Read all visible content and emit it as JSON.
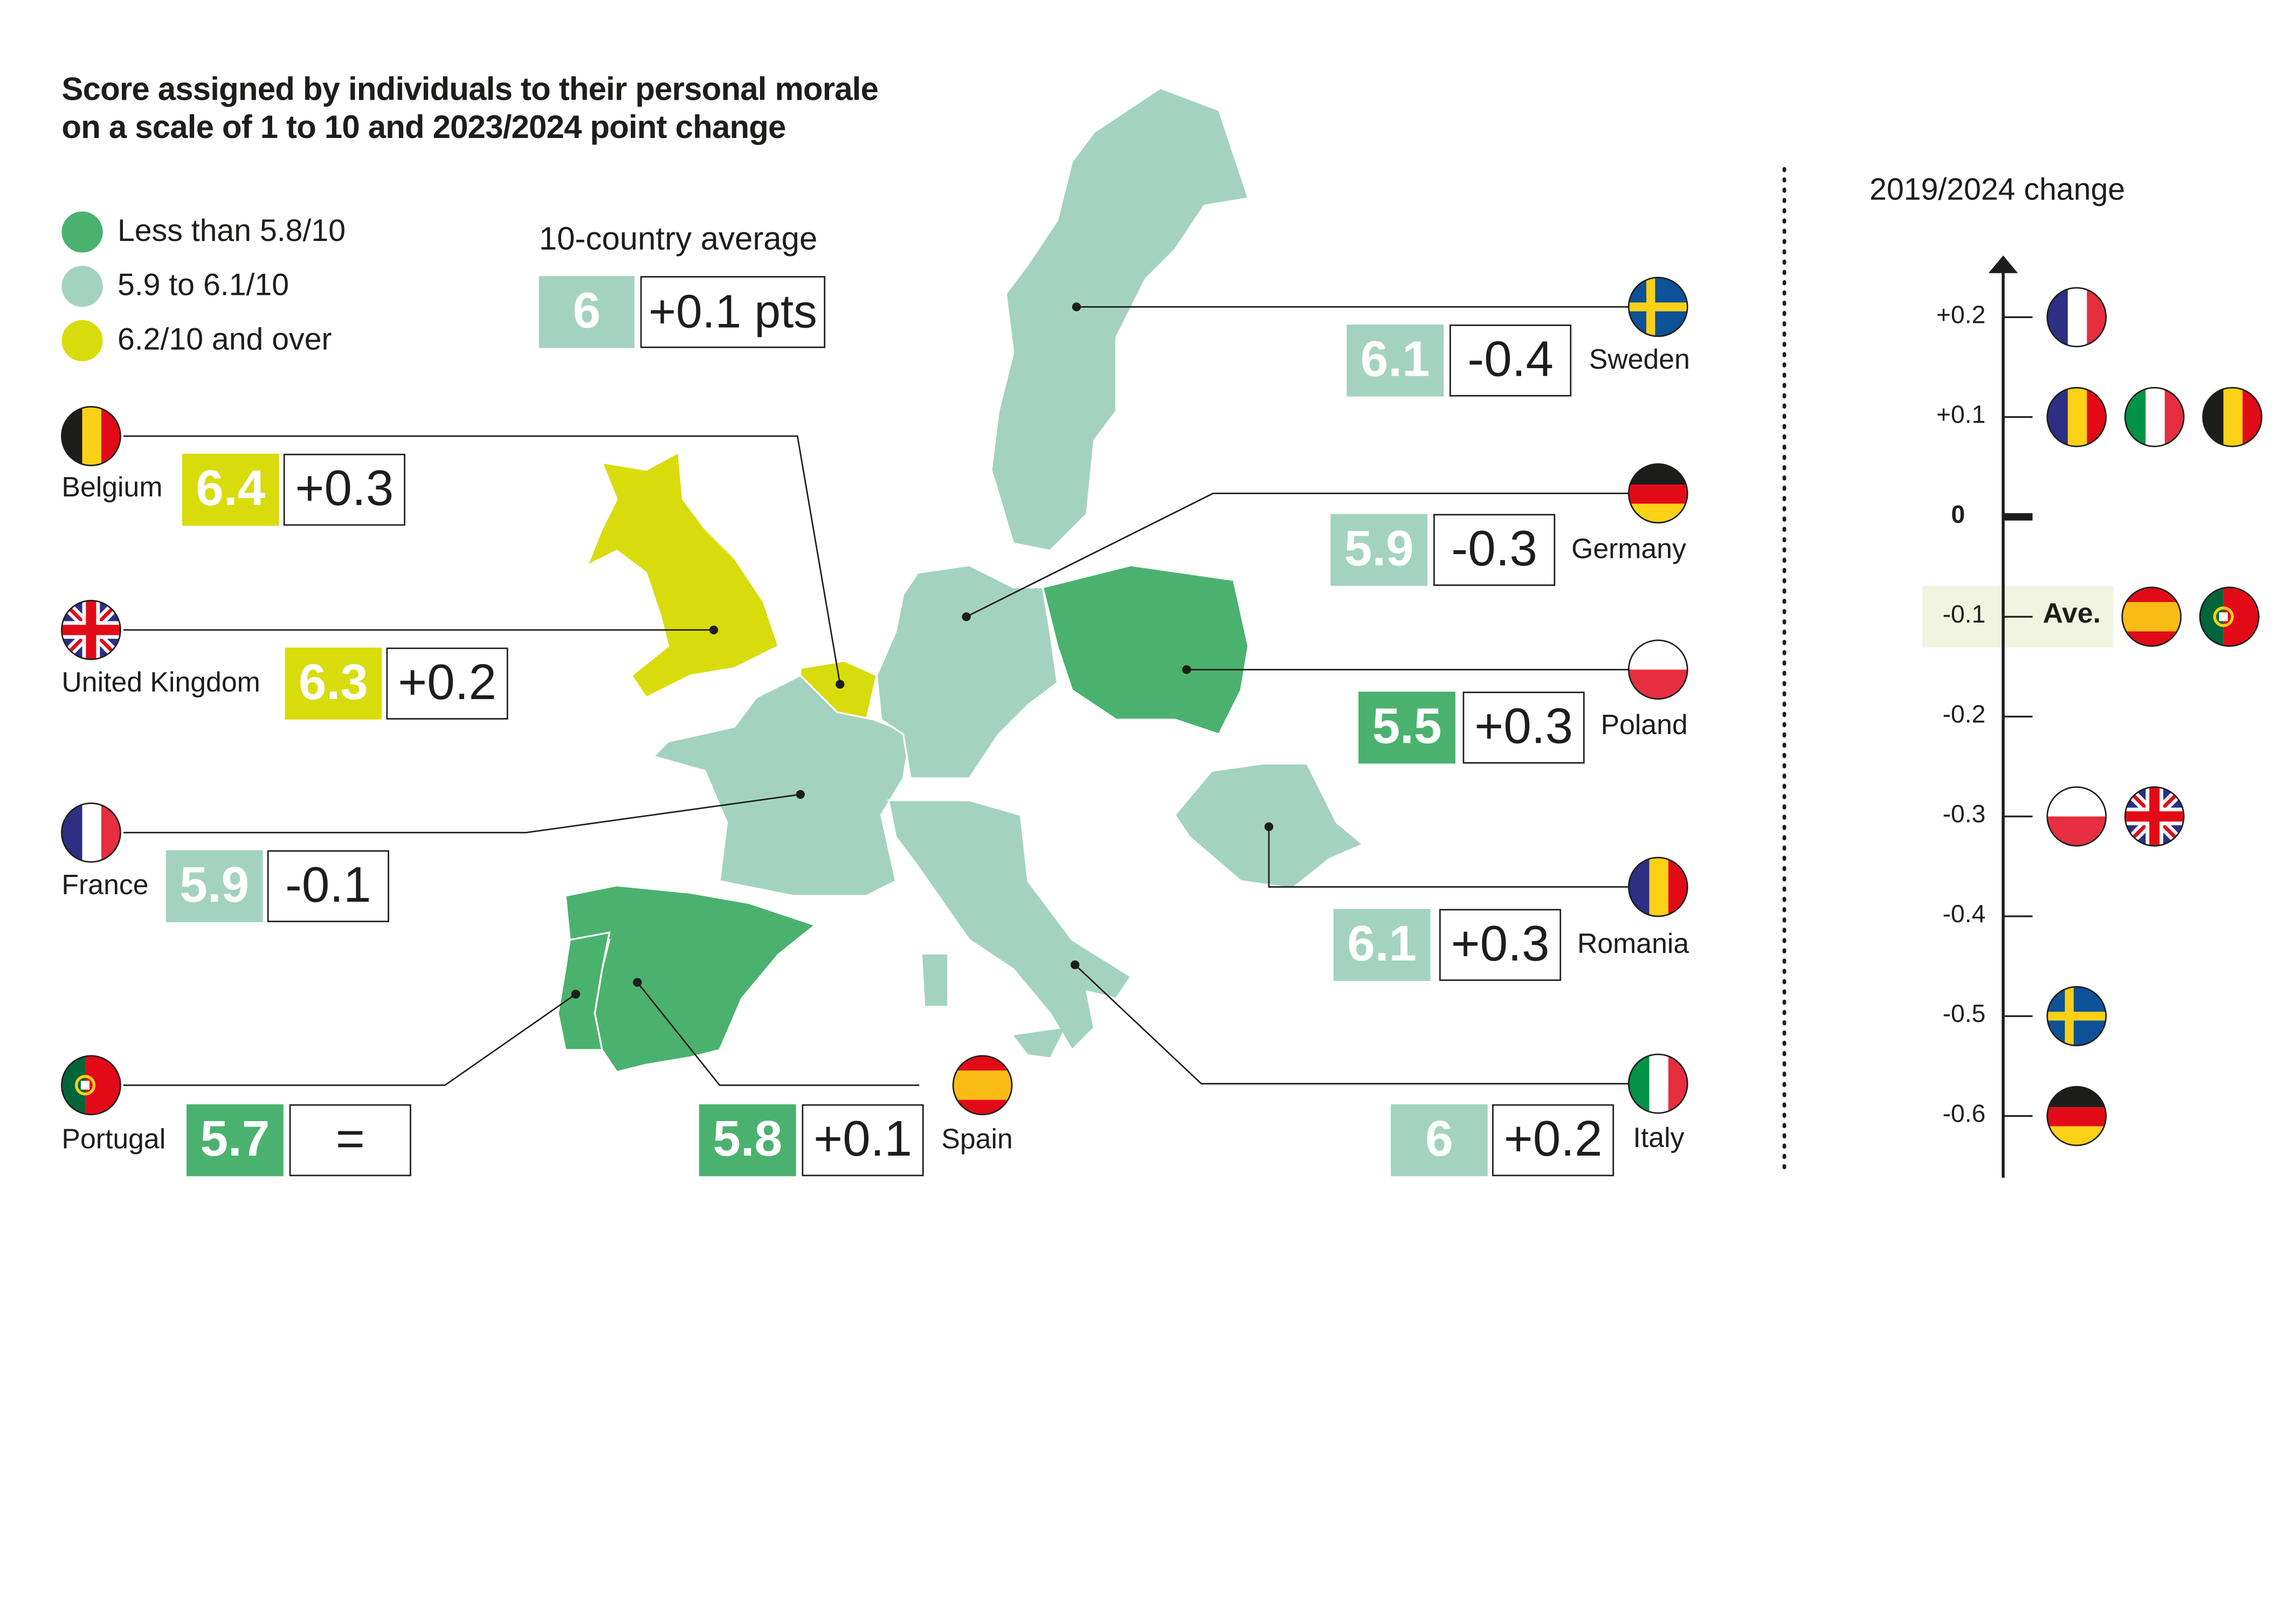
{
  "title": [
    "Score assigned by individuals to their personal morale",
    "on a scale of 1 to 10 and 2023/2024 point change"
  ],
  "colors": {
    "low": "#4ab26e",
    "mid": "#a3d3c0",
    "high": "#d9dc0b",
    "text": "#1d1d1b",
    "highlight": "#f1f5df"
  },
  "legend": [
    {
      "label": "Less than 5.8/10",
      "color": "#4ab26e"
    },
    {
      "label": "5.9 to 6.1/10",
      "color": "#a3d3c0"
    },
    {
      "label": "6.2/10 and over",
      "color": "#d9dc0b"
    }
  ],
  "average": {
    "label": "10-country average",
    "score": "6",
    "change": "+0.1 pts",
    "color": "#a3d3c0"
  },
  "countries": {
    "belgium": {
      "name": "Belgium",
      "score": "6.4",
      "change": "+0.3",
      "color": "#d9dc0b",
      "flag": "belgium-flag"
    },
    "uk": {
      "name": "United Kingdom",
      "score": "6.3",
      "change": "+0.2",
      "color": "#d9dc0b",
      "flag": "uk-flag"
    },
    "france": {
      "name": "France",
      "score": "5.9",
      "change": "-0.1",
      "color": "#a3d3c0",
      "flag": "france-flag"
    },
    "portugal": {
      "name": "Portugal",
      "score": "5.7",
      "change": "=",
      "color": "#4ab26e",
      "flag": "portugal-flag"
    },
    "spain": {
      "name": "Spain",
      "score": "5.8",
      "change": "+0.1",
      "color": "#4ab26e",
      "flag": "spain-flag"
    },
    "italy": {
      "name": "Italy",
      "score": "6",
      "change": "+0.2",
      "color": "#a3d3c0",
      "flag": "italy-flag"
    },
    "romania": {
      "name": "Romania",
      "score": "6.1",
      "change": "+0.3",
      "color": "#a3d3c0",
      "flag": "romania-flag"
    },
    "poland": {
      "name": "Poland",
      "score": "5.5",
      "change": "+0.3",
      "color": "#4ab26e",
      "flag": "poland-flag"
    },
    "germany": {
      "name": "Germany",
      "score": "5.9",
      "change": "-0.3",
      "color": "#a3d3c0",
      "flag": "germany-flag"
    },
    "sweden": {
      "name": "Sweden",
      "score": "6.1",
      "change": "-0.4",
      "color": "#a3d3c0",
      "flag": "sweden-flag"
    }
  },
  "chart_data": {
    "type": "scatter",
    "title": "2019/2024 change",
    "ylim": [
      -0.6,
      0.2
    ],
    "ticks": [
      "+0.2",
      "+0.1",
      "0",
      "-0.1",
      "-0.2",
      "-0.3",
      "-0.4",
      "-0.5",
      "-0.6"
    ],
    "average_label": "Ave.",
    "average_value": -0.1,
    "points": [
      {
        "country": "France",
        "value": 0.2
      },
      {
        "country": "Romania",
        "value": 0.1
      },
      {
        "country": "Italy",
        "value": 0.1
      },
      {
        "country": "Belgium",
        "value": 0.1
      },
      {
        "country": "Spain",
        "value": -0.1
      },
      {
        "country": "Portugal",
        "value": -0.1
      },
      {
        "country": "Poland",
        "value": -0.3
      },
      {
        "country": "United Kingdom",
        "value": -0.3
      },
      {
        "country": "Sweden",
        "value": -0.5
      },
      {
        "country": "Germany",
        "value": -0.6
      }
    ]
  }
}
